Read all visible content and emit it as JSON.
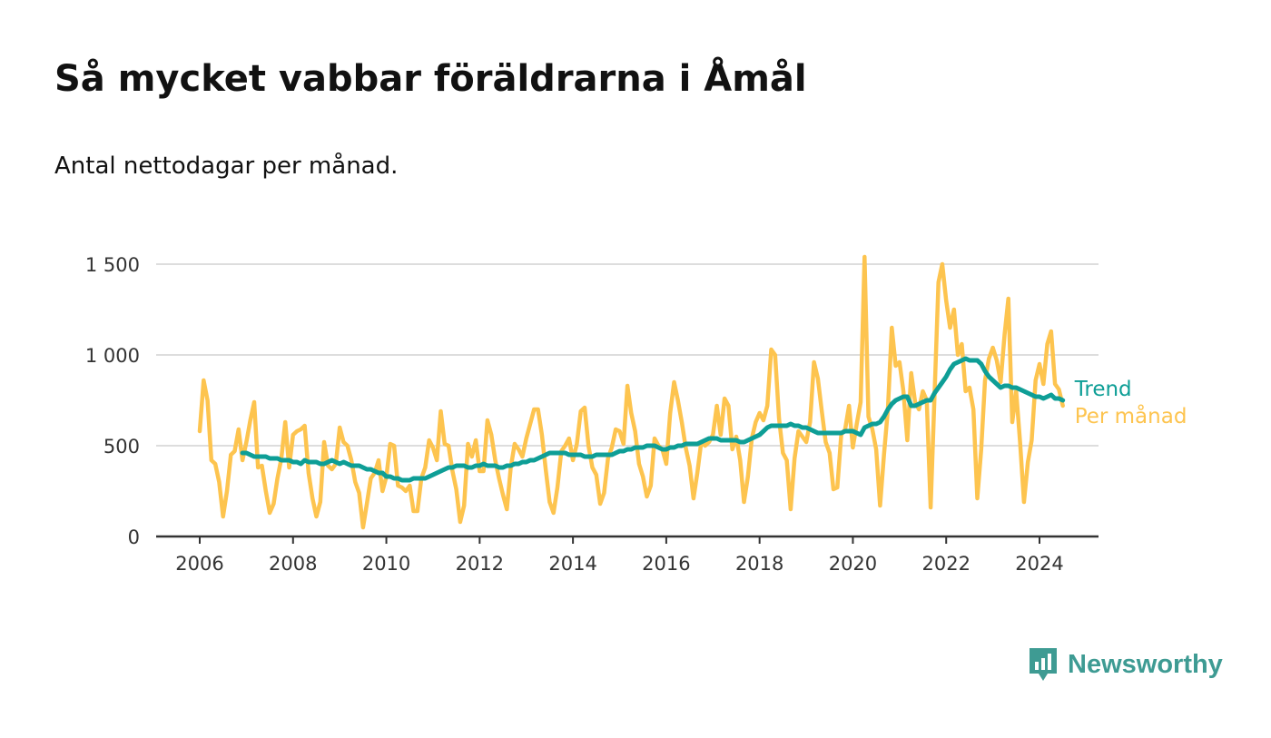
{
  "title": "Så mycket vabbar föräldrarna i Åmål",
  "subtitle": "Antal nettodagar per månad.",
  "brand": {
    "name": "Newsworthy",
    "icon": "newsworthy-logo-icon"
  },
  "colors": {
    "trend": "#0e9e96",
    "monthly": "#fdc44f",
    "grid": "#dddddd",
    "axis": "#333333"
  },
  "chart_data": {
    "type": "line",
    "title": "Så mycket vabbar föräldrarna i Åmål",
    "subtitle": "Antal nettodagar per månad.",
    "xlabel": "",
    "ylabel": "",
    "xlim": [
      2005.0,
      2025.6
    ],
    "ylim": [
      0,
      1600
    ],
    "x_ticks": [
      2006,
      2008,
      2010,
      2012,
      2014,
      2016,
      2018,
      2020,
      2022,
      2024
    ],
    "x_tick_labels": [
      "2006",
      "2008",
      "2010",
      "2012",
      "2014",
      "2016",
      "2018",
      "2020",
      "2022",
      "2024"
    ],
    "y_ticks": [
      0,
      500,
      1000,
      1500
    ],
    "y_tick_labels": [
      "0",
      "500",
      "1 000",
      "1 500"
    ],
    "grid": true,
    "legend": "right, at end of lines",
    "series": [
      {
        "name": "Per månad",
        "color": "#fdc44f",
        "start": 2006.0,
        "step_months": 1,
        "values": [
          580,
          860,
          750,
          420,
          400,
          300,
          110,
          250,
          450,
          470,
          590,
          420,
          520,
          640,
          740,
          380,
          390,
          250,
          130,
          180,
          320,
          430,
          630,
          380,
          560,
          580,
          590,
          610,
          350,
          210,
          110,
          190,
          520,
          390,
          370,
          400,
          600,
          520,
          500,
          420,
          300,
          240,
          50,
          180,
          320,
          350,
          420,
          250,
          330,
          510,
          500,
          280,
          270,
          250,
          280,
          140,
          140,
          320,
          380,
          530,
          490,
          420,
          690,
          510,
          500,
          360,
          260,
          80,
          170,
          510,
          440,
          530,
          360,
          360,
          640,
          560,
          420,
          320,
          230,
          150,
          380,
          510,
          480,
          440,
          540,
          620,
          700,
          700,
          560,
          370,
          190,
          130,
          270,
          470,
          500,
          540,
          420,
          510,
          690,
          710,
          500,
          380,
          340,
          180,
          240,
          430,
          490,
          590,
          580,
          510,
          830,
          680,
          580,
          400,
          330,
          220,
          280,
          540,
          500,
          480,
          400,
          680,
          850,
          750,
          630,
          490,
          390,
          210,
          350,
          520,
          500,
          520,
          560,
          720,
          560,
          760,
          720,
          480,
          550,
          420,
          190,
          330,
          540,
          630,
          680,
          640,
          720,
          1030,
          1000,
          650,
          460,
          420,
          150,
          430,
          580,
          550,
          520,
          630,
          960,
          870,
          690,
          520,
          460,
          260,
          270,
          560,
          590,
          720,
          490,
          620,
          740,
          1540,
          660,
          590,
          480,
          170,
          450,
          700,
          1150,
          940,
          960,
          800,
          530,
          900,
          740,
          700,
          800,
          750,
          160,
          780,
          1400,
          1500,
          1300,
          1150,
          1250,
          1000,
          1060,
          800,
          820,
          700,
          210,
          480,
          860,
          980,
          1040,
          970,
          850,
          1110,
          1310,
          630,
          800,
          520,
          190,
          410,
          530,
          860,
          950,
          840,
          1060,
          1130,
          840,
          810,
          720
        ]
      },
      {
        "name": "Trend",
        "color": "#0e9e96",
        "start": 2006.917,
        "step_months": 1,
        "values": [
          460,
          460,
          450,
          440,
          440,
          440,
          440,
          430,
          430,
          430,
          420,
          420,
          420,
          410,
          410,
          400,
          420,
          410,
          410,
          410,
          400,
          400,
          410,
          420,
          410,
          400,
          410,
          400,
          390,
          390,
          390,
          380,
          370,
          370,
          360,
          350,
          350,
          330,
          330,
          320,
          320,
          310,
          310,
          310,
          320,
          320,
          320,
          320,
          330,
          340,
          350,
          360,
          370,
          380,
          380,
          390,
          390,
          390,
          380,
          380,
          390,
          390,
          400,
          390,
          390,
          390,
          380,
          380,
          390,
          390,
          400,
          400,
          410,
          410,
          420,
          420,
          430,
          440,
          450,
          460,
          460,
          460,
          460,
          460,
          450,
          450,
          450,
          450,
          440,
          440,
          440,
          450,
          450,
          450,
          450,
          450,
          460,
          470,
          470,
          480,
          480,
          490,
          490,
          490,
          500,
          500,
          500,
          490,
          480,
          480,
          490,
          490,
          500,
          500,
          510,
          510,
          510,
          510,
          520,
          530,
          540,
          540,
          540,
          530,
          530,
          530,
          530,
          530,
          520,
          520,
          530,
          540,
          550,
          560,
          580,
          600,
          610,
          610,
          610,
          610,
          610,
          620,
          610,
          610,
          600,
          600,
          590,
          580,
          570,
          570,
          570,
          570,
          570,
          570,
          570,
          580,
          580,
          580,
          570,
          560,
          600,
          610,
          620,
          620,
          630,
          660,
          700,
          730,
          750,
          760,
          770,
          770,
          720,
          720,
          730,
          740,
          750,
          750,
          790,
          820,
          850,
          880,
          920,
          950,
          960,
          970,
          980,
          970,
          970,
          970,
          950,
          910,
          880,
          860,
          840,
          820,
          830,
          830,
          820,
          820,
          810,
          800,
          790,
          780,
          770,
          770,
          760,
          770,
          780,
          760,
          760,
          750
        ]
      }
    ]
  }
}
